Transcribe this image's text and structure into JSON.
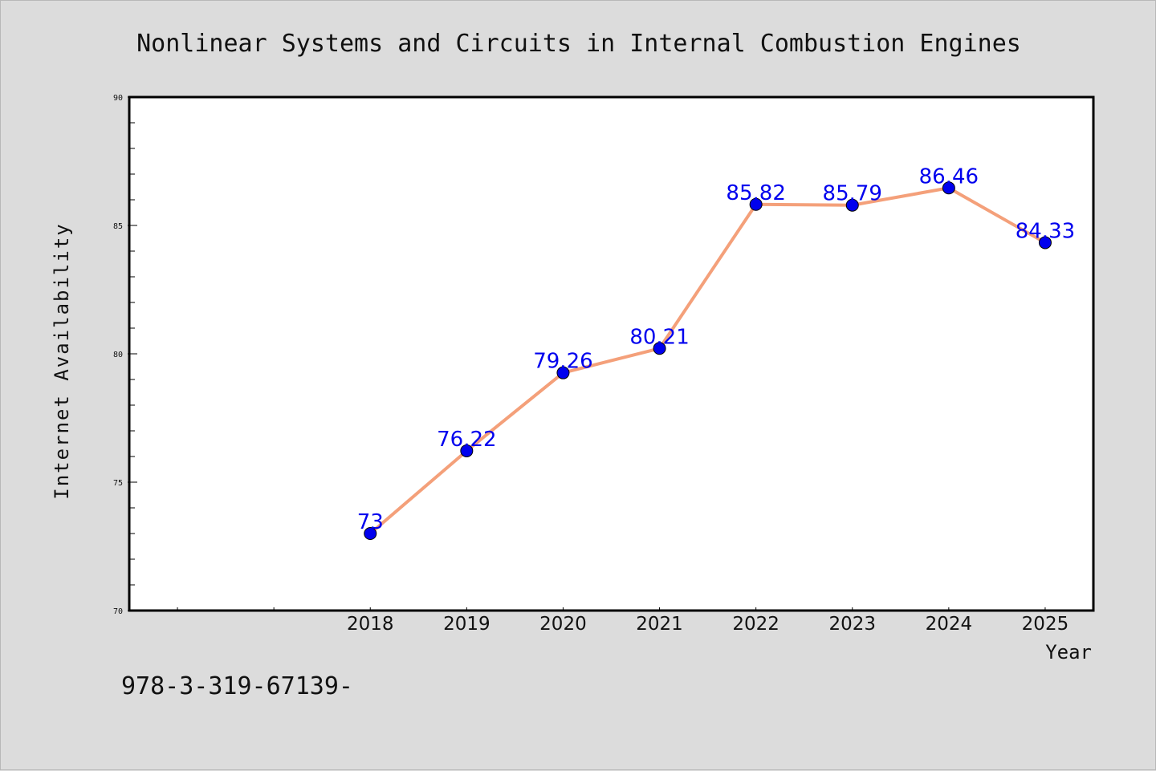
{
  "footer": {
    "isbn": "978-3-319-67139-"
  },
  "colors": {
    "background": "#dcdcdc",
    "plot_background": "#ffffff",
    "line": "#f4a07a",
    "marker": "#0000ee",
    "data_label": "#0000ee",
    "axes": "#000000"
  },
  "chart_data": {
    "type": "line",
    "title": "Nonlinear Systems and Circuits in Internal Combustion Engines",
    "xlabel": "Year",
    "ylabel": "Internet Availability",
    "x": [
      2018,
      2019,
      2020,
      2021,
      2022,
      2023,
      2024,
      2025
    ],
    "xtick_labels": [
      "2018",
      "2019",
      "2020",
      "2021",
      "2022",
      "2023",
      "2024",
      "2025"
    ],
    "xlim": [
      2015.5,
      2025.5
    ],
    "series": [
      {
        "values": [
          73,
          76.22,
          79.26,
          80.21,
          85.82,
          85.79,
          86.46,
          84.33
        ],
        "labels": [
          "73",
          "76.22",
          "79.26",
          "80.21",
          "85.82",
          "85.79",
          "86.46",
          "84.33"
        ],
        "line_color": "#f4a07a",
        "marker_color": "#0000ee",
        "marker": "circle"
      }
    ],
    "ylim": [
      70,
      90
    ],
    "yticks": [
      70,
      75,
      80,
      85,
      90
    ],
    "ytick_labels": [
      "70",
      "75",
      "80",
      "85",
      "90"
    ],
    "y_minor_step": 1,
    "grid": false,
    "legend": false
  }
}
